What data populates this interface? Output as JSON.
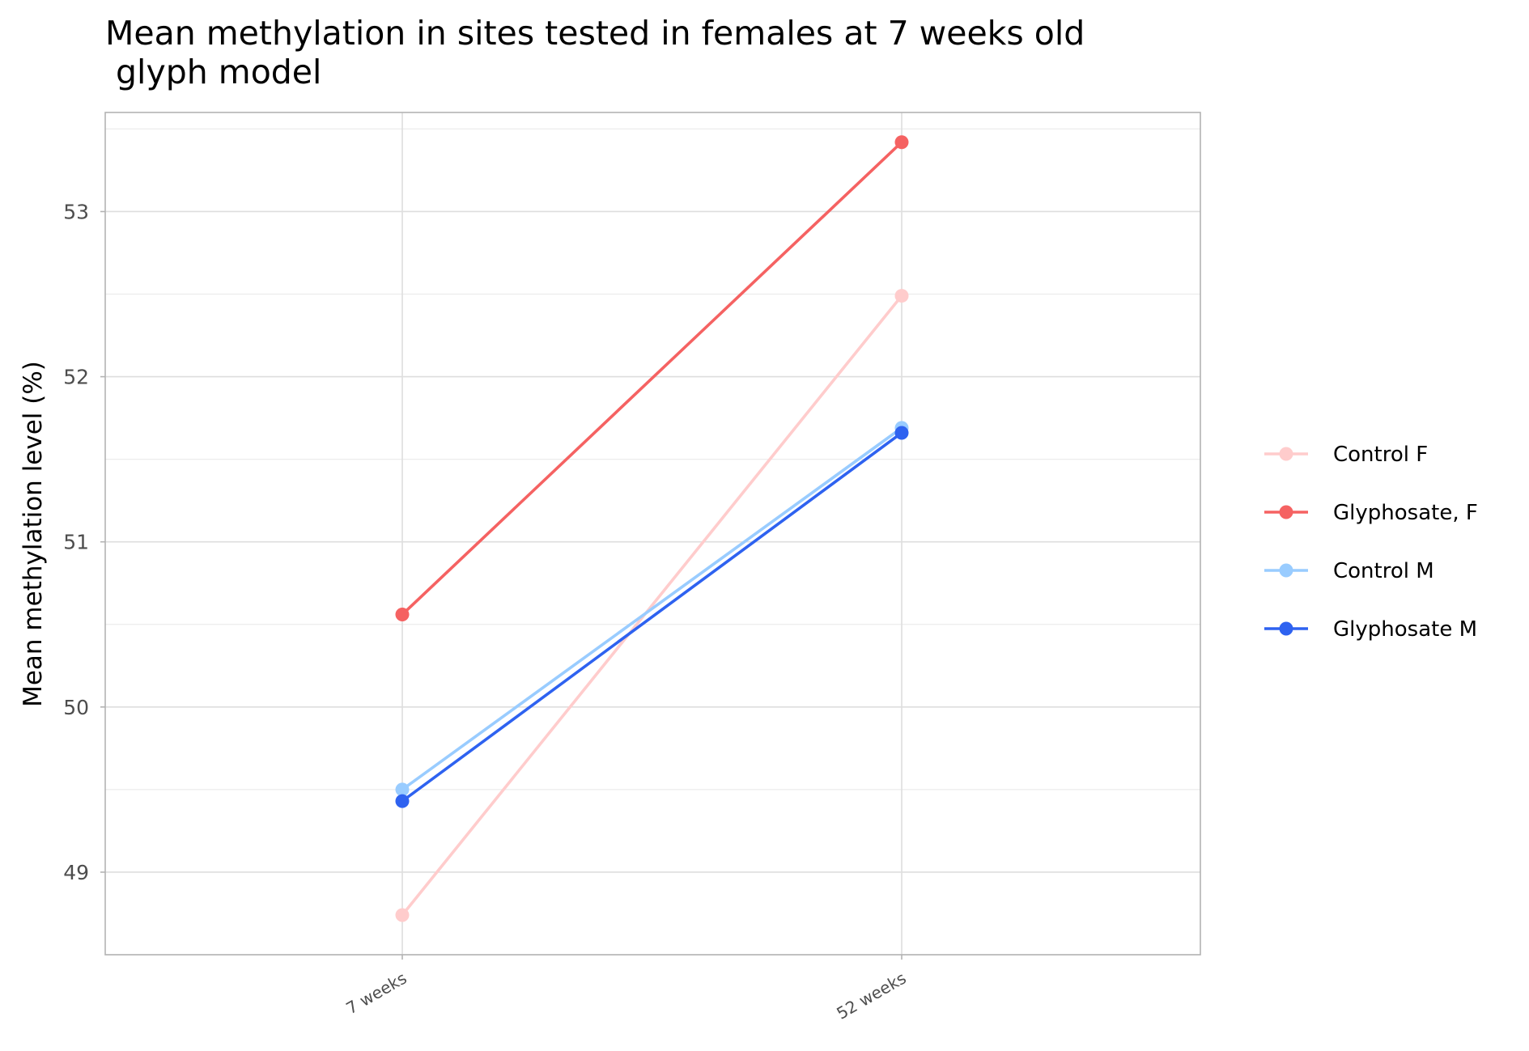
{
  "chart_data": {
    "type": "line",
    "title_lines": [
      "Mean methylation in sites tested in females at 7 weeks old",
      " glyph model"
    ],
    "xlabel": "",
    "ylabel": "Mean methylation level (%)",
    "categories": [
      "7 weeks",
      "52 weeks"
    ],
    "ylim": [
      48.5,
      53.6
    ],
    "yticks": [
      49,
      50,
      51,
      52,
      53
    ],
    "grid": true,
    "legend_position": "right",
    "series": [
      {
        "name": "Control F",
        "color": "#FFCCCC",
        "values": [
          48.74,
          52.49
        ]
      },
      {
        "name": "Glyphosate, F",
        "color": "#F56262",
        "values": [
          50.56,
          53.42
        ]
      },
      {
        "name": "Control M",
        "color": "#99CCFF",
        "values": [
          49.5,
          51.69
        ]
      },
      {
        "name": "Glyphosate M",
        "color": "#2E62F0",
        "values": [
          49.43,
          51.66
        ]
      }
    ]
  }
}
